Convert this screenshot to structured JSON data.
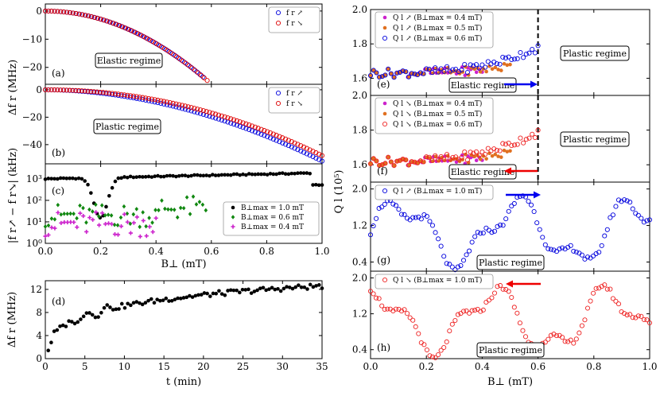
{
  "chart_data": [
    {
      "id": "a",
      "type": "scatter",
      "panel_label": "(a)",
      "xlim": [
        0,
        1
      ],
      "ylim": [
        -26,
        2.5
      ],
      "yticks": [
        {
          "v": 0,
          "t": "0"
        },
        {
          "v": -10,
          "t": "−10"
        },
        {
          "v": -20,
          "t": "−20"
        }
      ],
      "regime_box": "Elastic regime",
      "legend": [
        "f r ↗",
        "f r ↘"
      ],
      "series": [
        {
          "name": "up",
          "color": "#0000dd",
          "marker": "circle-open",
          "fn": "poly",
          "a": 72,
          "p": 2,
          "x0": 0,
          "x1": 0.57,
          "n": 52
        },
        {
          "name": "down",
          "color": "#dd0000",
          "marker": "circle-open",
          "fn": "poly",
          "a": 72,
          "p": 2,
          "x0": 0,
          "x1": 0.585,
          "n": 54
        }
      ]
    },
    {
      "id": "b",
      "type": "scatter",
      "panel_label": "(b)",
      "xlim": [
        0,
        1
      ],
      "ylim": [
        -54,
        4
      ],
      "yticks": [
        {
          "v": 0,
          "t": "0"
        },
        {
          "v": -20,
          "t": "−20"
        },
        {
          "v": -40,
          "t": "−40"
        }
      ],
      "regime_box": "Plastic regime",
      "legend": [
        "f r ↗",
        "f r ↘"
      ],
      "series": [
        {
          "name": "up",
          "color": "#0000dd",
          "marker": "circle-open",
          "fn": "poly",
          "a": 52,
          "p": 1.9,
          "x0": 0,
          "x1": 1,
          "n": 92
        },
        {
          "name": "down",
          "color": "#dd0000",
          "marker": "circle-open",
          "fn": "poly",
          "a": 48,
          "p": 2.05,
          "x0": 0,
          "x1": 1,
          "n": 92
        }
      ]
    },
    {
      "id": "c",
      "type": "scatter",
      "panel_label": "(c)",
      "xlim": [
        0,
        1
      ],
      "ylim": [
        0,
        3.7
      ],
      "log": true,
      "ylabel": "|f r↗ − f r↘| (kHz)",
      "xlabel": "B⊥ (mT)",
      "xticks": [
        "0.0",
        "0.2",
        "0.4",
        "0.6",
        "0.8",
        "1.0"
      ],
      "legend": [
        "B⊥max = 1.0 mT",
        "B⊥max = 0.6 mT",
        "B⊥max = 0.4 mT"
      ],
      "series": [
        {
          "name": "max 1.0 mT",
          "color": "#000000",
          "marker": "circle-filled",
          "fn": "dip",
          "base": 3.0,
          "dipAt": 0.2,
          "dipDepth": 1.9,
          "x0": 0,
          "x1": 1,
          "n": 92
        },
        {
          "name": "max 0.6 mT",
          "color": "#118811",
          "marker": "diamond",
          "fn": "noisy",
          "base": 1.3,
          "amp": 0.55,
          "x0": 0,
          "x1": 0.58,
          "n": 52
        },
        {
          "name": "max 0.4 mT",
          "color": "#cc22cc",
          "marker": "plus",
          "fn": "noisy",
          "base": 0.9,
          "amp": 0.6,
          "x0": 0,
          "x1": 0.4,
          "n": 36
        }
      ]
    },
    {
      "id": "d",
      "type": "scatter",
      "panel_label": "(d)",
      "xlim": [
        0,
        35
      ],
      "ylim": [
        0,
        13.5
      ],
      "yticks": [
        {
          "v": 0,
          "t": "0"
        },
        {
          "v": 4,
          "t": "4"
        },
        {
          "v": 8,
          "t": "8"
        },
        {
          "v": 12,
          "t": "12"
        }
      ],
      "xticks": [
        "0",
        "5",
        "10",
        "15",
        "20",
        "25",
        "30",
        "35"
      ],
      "ylabel": "Δf r (MHz)",
      "xlabel": "t (min)",
      "series": [
        {
          "name": "drift",
          "color": "#000000",
          "marker": "circle-filled",
          "fn": "log",
          "x0": 0,
          "x1": 35,
          "n": 95
        }
      ]
    },
    {
      "id": "e",
      "type": "scatter",
      "panel_label": "(e)",
      "xlim": [
        0,
        1
      ],
      "ylim": [
        1.5,
        2.0
      ],
      "yticks": [
        {
          "v": 1.6,
          "t": "1.6"
        },
        {
          "v": 1.8,
          "t": "1.8"
        },
        {
          "v": 2.0,
          "t": "2.0"
        }
      ],
      "regime_box": "Elastic regime",
      "regime_box2": "Plastic regime",
      "legend": [
        "Q l ↗ (B⊥max = 0.4 mT)",
        "Q l ↗ (B⊥max = 0.5 mT)",
        "Q l ↗ (B⊥max = 0.6 mT)"
      ],
      "arrow": "right",
      "vline": 0.6,
      "series": [
        {
          "name": "0.4",
          "color": "#cc22cc",
          "marker": "circle-filled",
          "fn": "flat",
          "base": 1.63,
          "rise": 0.02,
          "x0": 0,
          "x1": 0.4,
          "n": 40
        },
        {
          "name": "0.5",
          "color": "#e07020",
          "marker": "circle-filled",
          "fn": "flat",
          "base": 1.63,
          "rise": 0.04,
          "x0": 0,
          "x1": 0.5,
          "n": 48
        },
        {
          "name": "0.6",
          "color": "#0000dd",
          "marker": "circle-open",
          "fn": "flat",
          "base": 1.63,
          "rise": 0.15,
          "x0": 0,
          "x1": 0.6,
          "n": 58
        }
      ]
    },
    {
      "id": "f",
      "type": "scatter",
      "panel_label": "(f)",
      "xlim": [
        0,
        1
      ],
      "ylim": [
        1.5,
        2.0
      ],
      "yticks": [
        {
          "v": 1.6,
          "t": "1.6"
        },
        {
          "v": 1.8,
          "t": "1.8"
        },
        {
          "v": 2.0,
          "t": "2.0"
        }
      ],
      "regime_box": "Elastic regime",
      "regime_box2": "Plastic regime",
      "legend": [
        "Q l ↘ (B⊥max = 0.4 mT)",
        "Q l ↘ (B⊥max = 0.5 mT)",
        "Q l ↘ (B⊥max = 0.6 mT)"
      ],
      "arrow": "left",
      "vline": 0.6,
      "ylabel": "Q l (10⁵)",
      "series": [
        {
          "name": "0.4",
          "color": "#cc22cc",
          "marker": "circle-filled",
          "fn": "flat",
          "base": 1.62,
          "rise": 0.02,
          "x0": 0,
          "x1": 0.4,
          "n": 40
        },
        {
          "name": "0.5",
          "color": "#e07020",
          "marker": "circle-filled",
          "fn": "flat",
          "base": 1.62,
          "rise": 0.05,
          "x0": 0,
          "x1": 0.5,
          "n": 48
        },
        {
          "name": "0.6",
          "color": "#ee2222",
          "marker": "circle-open",
          "fn": "flat",
          "base": 1.62,
          "rise": 0.17,
          "x0": 0,
          "x1": 0.6,
          "n": 58
        }
      ]
    },
    {
      "id": "g",
      "type": "scatter",
      "panel_label": "(g)",
      "xlim": [
        0,
        1
      ],
      "ylim": [
        0.2,
        2.15
      ],
      "yticks": [
        {
          "v": 0.4,
          "t": "0.4"
        },
        {
          "v": 1.2,
          "t": "1.2"
        },
        {
          "v": 2.0,
          "t": "2.0"
        }
      ],
      "regime_box": "Plastic regime",
      "legend": [
        "Q l ↗ (B⊥max = 1.0 mT)"
      ],
      "arrow": "right",
      "series": [
        {
          "name": "1.0",
          "color": "#0000dd",
          "marker": "circle-open",
          "fn": "wave",
          "phase": 0.0,
          "x0": 0,
          "x1": 1,
          "n": 100
        }
      ]
    },
    {
      "id": "h",
      "type": "scatter",
      "panel_label": "(h)",
      "xlim": [
        0,
        1
      ],
      "ylim": [
        0.2,
        2.15
      ],
      "yticks": [
        {
          "v": 0.4,
          "t": "0.4"
        },
        {
          "v": 1.2,
          "t": "1.2"
        },
        {
          "v": 2.0,
          "t": "2.0"
        }
      ],
      "xticks": [
        "0.0",
        "0.2",
        "0.4",
        "0.6",
        "0.8",
        "1.0"
      ],
      "xlabel": "B⊥ (mT)",
      "regime_box": "Plastic regime",
      "legend": [
        "Q l ↘ (B⊥max = 1.0 mT)"
      ],
      "arrow": "left",
      "series": [
        {
          "name": "1.0",
          "color": "#ee2222",
          "marker": "circle-open",
          "fn": "wave",
          "phase": 1.3,
          "x0": 0,
          "x1": 1,
          "n": 100
        }
      ]
    }
  ],
  "labels": {
    "left_ylabel_ab": "Δf r (MHz)"
  }
}
